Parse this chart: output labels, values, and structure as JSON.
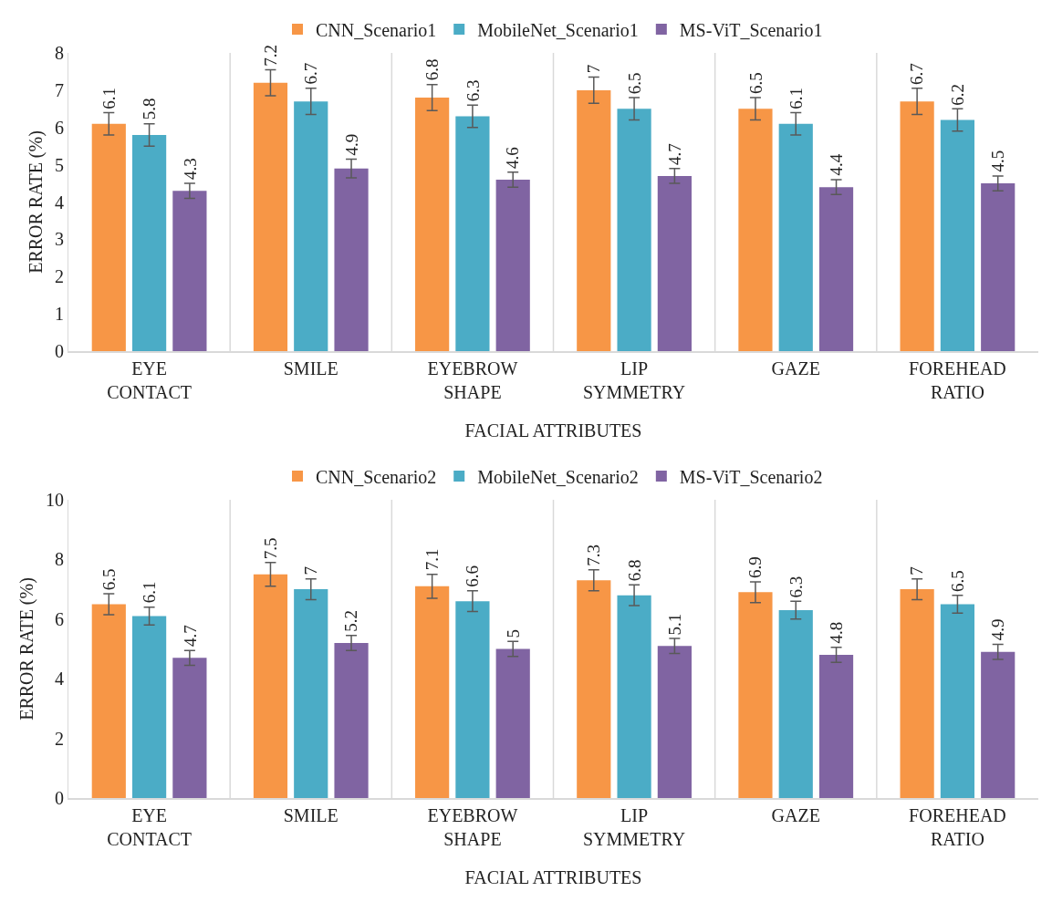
{
  "chart_data": [
    {
      "type": "bar",
      "xlabel": "FACIAL ATTRIBUTES",
      "ylabel": "ERROR RATE (%)",
      "categories": [
        "EYE CONTACT",
        "SMILE",
        "EYEBROW SHAPE",
        "LIP SYMMETRY",
        "GAZE",
        "FOREHEAD RATIO"
      ],
      "series": [
        {
          "name": "CNN_Scenario1",
          "color": "#f79646",
          "values": [
            6.1,
            7.2,
            6.8,
            7.0,
            6.5,
            6.7
          ],
          "errors": [
            0.3,
            0.35,
            0.35,
            0.35,
            0.3,
            0.35
          ]
        },
        {
          "name": "MobileNet_Scenario1",
          "color": "#4bacc6",
          "values": [
            5.8,
            6.7,
            6.3,
            6.5,
            6.1,
            6.2
          ],
          "errors": [
            0.3,
            0.35,
            0.3,
            0.3,
            0.3,
            0.3
          ]
        },
        {
          "name": "MS-ViT_Scenario1",
          "color": "#8064a2",
          "values": [
            4.3,
            4.9,
            4.6,
            4.7,
            4.4,
            4.5
          ],
          "errors": [
            0.2,
            0.25,
            0.2,
            0.2,
            0.2,
            0.2
          ]
        }
      ],
      "ylim": [
        0,
        8
      ],
      "yticks": [
        0,
        1,
        2,
        3,
        4,
        5,
        6,
        7,
        8
      ],
      "grid": "x",
      "legend": "top",
      "data_labels": true
    },
    {
      "type": "bar",
      "xlabel": "FACIAL ATTRIBUTES",
      "ylabel": "ERROR RATE (%)",
      "categories": [
        "EYE CONTACT",
        "SMILE",
        "EYEBROW SHAPE",
        "LIP SYMMETRY",
        "GAZE",
        "FOREHEAD RATIO"
      ],
      "series": [
        {
          "name": "CNN_Scenario2",
          "color": "#f79646",
          "values": [
            6.5,
            7.5,
            7.1,
            7.3,
            6.9,
            7.0
          ],
          "errors": [
            0.35,
            0.4,
            0.4,
            0.35,
            0.35,
            0.35
          ]
        },
        {
          "name": "MobileNet_Scenario2",
          "color": "#4bacc6",
          "values": [
            6.1,
            7.0,
            6.6,
            6.8,
            6.3,
            6.5
          ],
          "errors": [
            0.3,
            0.35,
            0.35,
            0.35,
            0.3,
            0.3
          ]
        },
        {
          "name": "MS-ViT_Scenario2",
          "color": "#8064a2",
          "values": [
            4.7,
            5.2,
            5.0,
            5.1,
            4.8,
            4.9
          ],
          "errors": [
            0.25,
            0.25,
            0.25,
            0.25,
            0.25,
            0.25
          ]
        }
      ],
      "ylim": [
        0,
        10
      ],
      "yticks": [
        0,
        2,
        4,
        6,
        8,
        10
      ],
      "grid": "x",
      "legend": "top",
      "data_labels": true
    }
  ]
}
